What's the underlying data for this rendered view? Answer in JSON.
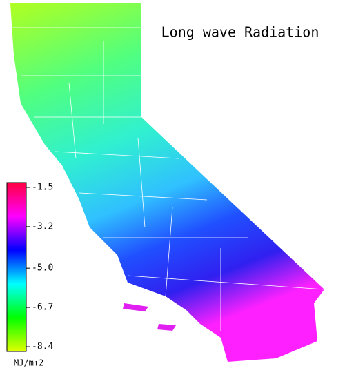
{
  "chart_data": {
    "type": "map",
    "title": "Long wave Radiation",
    "colorbar": {
      "label": "MJ/m↑2",
      "lim": [
        -8.4,
        -1.5
      ],
      "ticks": [
        -1.5,
        -3.2,
        {
          "value": -5,
          "label": "-5.0"
        },
        -6.7,
        -8.4
      ],
      "colors": [
        "#e0ff00",
        "#00ff00",
        "#00ffff",
        "#0000ff",
        "#ff00ff",
        "#ff0040"
      ]
    }
  }
}
